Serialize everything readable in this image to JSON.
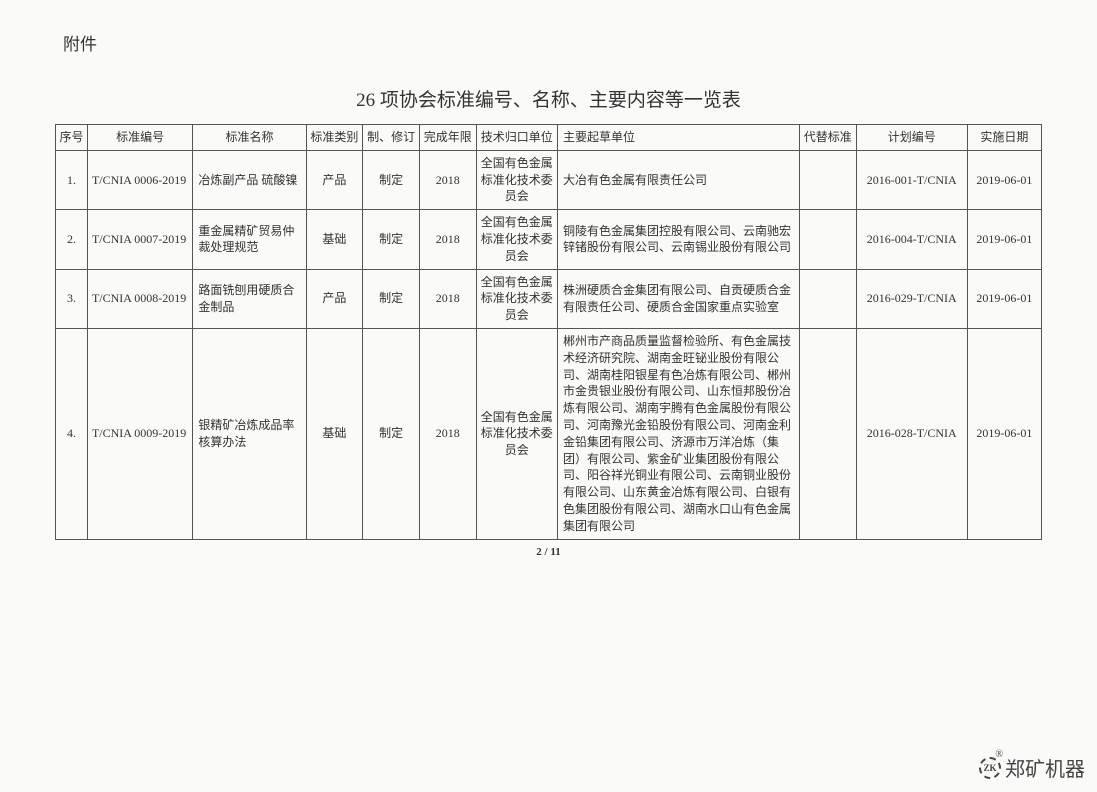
{
  "attachment": "附件",
  "title": "26 项协会标准编号、名称、主要内容等一览表",
  "headers": {
    "seq": "序号",
    "code": "标准编号",
    "name": "标准名称",
    "type": "标准类别",
    "revise": "制、修订",
    "year": "完成年限",
    "tech": "技术归口单位",
    "draft": "主要起草单位",
    "replace": "代替标准",
    "plan": "计划编号",
    "date": "实施日期"
  },
  "rows": [
    {
      "seq": "1.",
      "code": "T/CNIA 0006-2019",
      "name": "冶炼副产品 硫酸镍",
      "type": "产品",
      "revise": "制定",
      "year": "2018",
      "tech": "全国有色金属标准化技术委员会",
      "draft": "大冶有色金属有限责任公司",
      "replace": "",
      "plan": "2016-001-T/CNIA",
      "date": "2019-06-01"
    },
    {
      "seq": "2.",
      "code": "T/CNIA 0007-2019",
      "name": "重金属精矿贸易仲裁处理规范",
      "type": "基础",
      "revise": "制定",
      "year": "2018",
      "tech": "全国有色金属标准化技术委员会",
      "draft": "铜陵有色金属集团控股有限公司、云南驰宏锌锗股份有限公司、云南锡业股份有限公司",
      "replace": "",
      "plan": "2016-004-T/CNIA",
      "date": "2019-06-01"
    },
    {
      "seq": "3.",
      "code": "T/CNIA 0008-2019",
      "name": "路面铣刨用硬质合金制品",
      "type": "产品",
      "revise": "制定",
      "year": "2018",
      "tech": "全国有色金属标准化技术委员会",
      "draft": "株洲硬质合金集团有限公司、自贡硬质合金有限责任公司、硬质合金国家重点实验室",
      "replace": "",
      "plan": "2016-029-T/CNIA",
      "date": "2019-06-01"
    },
    {
      "seq": "4.",
      "code": "T/CNIA 0009-2019",
      "name": "银精矿冶炼成品率核算办法",
      "type": "基础",
      "revise": "制定",
      "year": "2018",
      "tech": "全国有色金属标准化技术委员会",
      "draft": "郴州市产商品质量监督检验所、有色金属技术经济研究院、湖南金旺铋业股份有限公司、湖南桂阳银星有色冶炼有限公司、郴州市金贵银业股份有限公司、山东恒邦股份冶炼有限公司、湖南宇腾有色金属股份有限公司、河南豫光金铅股份有限公司、河南金利金铅集团有限公司、济源市万洋冶炼（集团）有限公司、紫金矿业集团股份有限公司、阳谷祥光铜业有限公司、云南铜业股份有限公司、山东黄金冶炼有限公司、白银有色集团股份有限公司、湖南水口山有色金属集团有限公司",
      "replace": "",
      "plan": "2016-028-T/CNIA",
      "date": "2019-06-01"
    }
  ],
  "footer": "2 / 11",
  "watermark": {
    "icon_text": "ZK",
    "reg": "®",
    "text": "郑矿机器"
  }
}
